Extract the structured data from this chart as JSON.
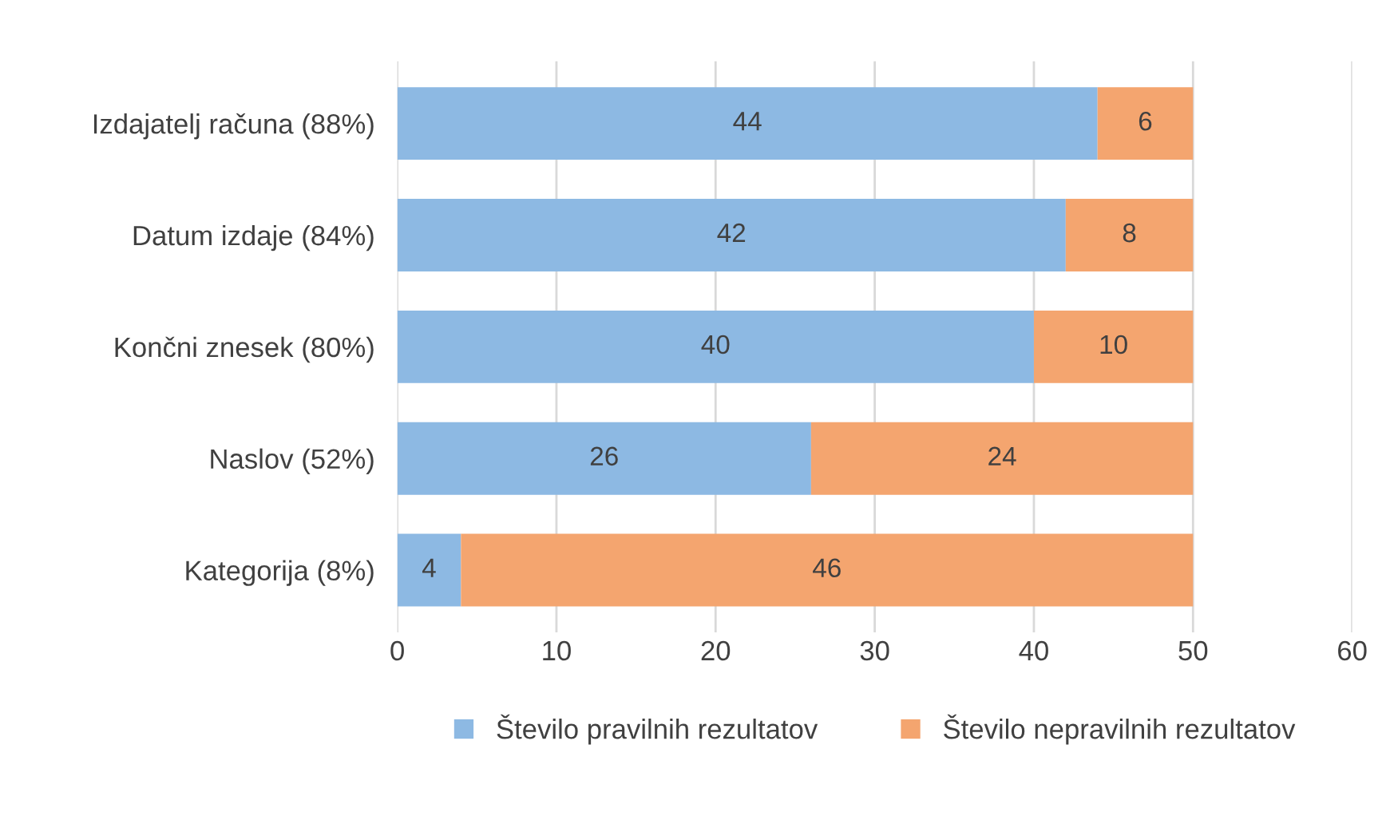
{
  "chart_data": {
    "type": "bar",
    "orientation": "horizontal",
    "stacked": true,
    "categories": [
      "Izdajatelj računa (88%)",
      "Datum izdaje (84%)",
      "Končni znesek (80%)",
      "Naslov (52%)",
      "Kategorija (8%)"
    ],
    "series": [
      {
        "name": "Število pravilnih rezultatov",
        "color": "#8db9e3",
        "values": [
          44,
          42,
          40,
          26,
          4
        ]
      },
      {
        "name": "Število nepravilnih rezultatov",
        "color": "#f4a56f",
        "values": [
          6,
          8,
          10,
          24,
          46
        ]
      }
    ],
    "xlim": [
      0,
      60
    ],
    "xticks": [
      0,
      10,
      20,
      30,
      40,
      50,
      60
    ],
    "grid": "x",
    "legend": "bottom",
    "data_labels": true
  }
}
